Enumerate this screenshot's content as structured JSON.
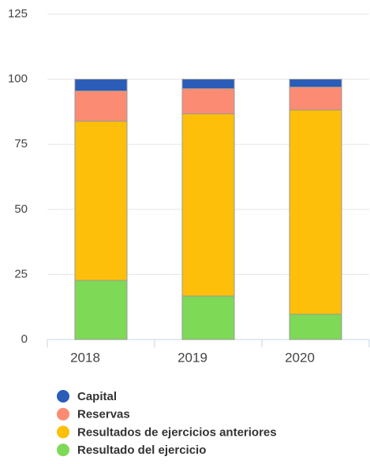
{
  "chart_data": {
    "type": "stacked_bar",
    "categories": [
      "2018",
      "2019",
      "2020"
    ],
    "series": [
      {
        "name": "Capital",
        "color": "#2a5cb8",
        "values": [
          4.5,
          3.6,
          3.0
        ]
      },
      {
        "name": "Reservas",
        "color": "#fb8c73",
        "values": [
          11.6,
          9.7,
          8.8
        ]
      },
      {
        "name": "Resultados de ejercicios anteriores",
        "color": "#fdbf0a",
        "values": [
          61.2,
          70.0,
          78.5
        ]
      },
      {
        "name": "Resultado del ejercicio",
        "color": "#7ed957",
        "values": [
          22.7,
          16.7,
          9.7
        ]
      }
    ],
    "ylim": [
      0,
      125
    ],
    "yticks": [
      0,
      25,
      50,
      75,
      100,
      125
    ],
    "grid": true
  }
}
